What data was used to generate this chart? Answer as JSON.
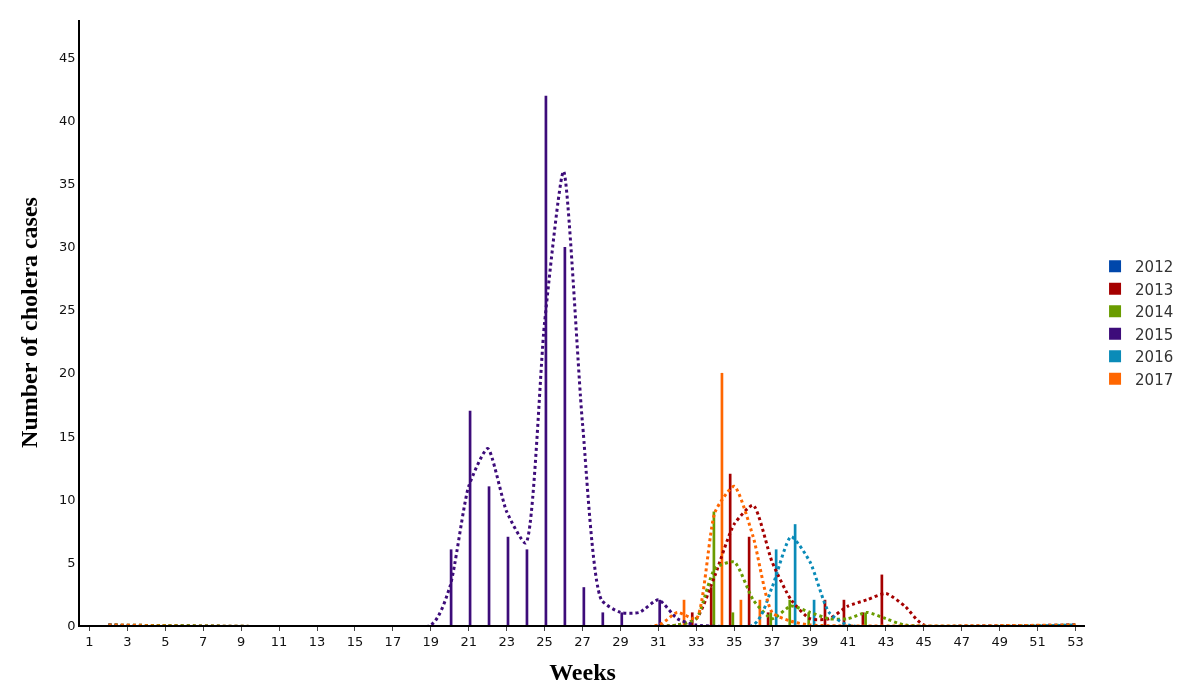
{
  "chart_data": {
    "type": "bar",
    "xlabel": "Weeks",
    "ylabel": "Number of cholera cases",
    "x": [
      1,
      2,
      3,
      4,
      5,
      6,
      7,
      8,
      9,
      10,
      11,
      12,
      13,
      14,
      15,
      16,
      17,
      18,
      19,
      20,
      21,
      22,
      23,
      24,
      25,
      26,
      27,
      28,
      29,
      30,
      31,
      32,
      33,
      34,
      35,
      36,
      37,
      38,
      39,
      40,
      41,
      42,
      43,
      44,
      45,
      46,
      47,
      48,
      49,
      50,
      51,
      52,
      53
    ],
    "xlim": [
      0.5,
      53.5
    ],
    "xticks": [
      1,
      3,
      5,
      7,
      9,
      11,
      13,
      15,
      17,
      19,
      21,
      23,
      25,
      27,
      29,
      31,
      33,
      35,
      37,
      39,
      41,
      43,
      45,
      47,
      49,
      51,
      53
    ],
    "ylim": [
      0,
      48
    ],
    "yticks": [
      0,
      5,
      10,
      15,
      20,
      25,
      30,
      35,
      40,
      45
    ],
    "legend": "right",
    "series": [
      {
        "name": "2012",
        "color": "#0047ab",
        "values": [
          0,
          0,
          0,
          0,
          0,
          0,
          0,
          0,
          0,
          0,
          0,
          0,
          0,
          0,
          0,
          0,
          0,
          0,
          0,
          0,
          0,
          0,
          0,
          0,
          0,
          0,
          0,
          0,
          0,
          0,
          0,
          0,
          0,
          0,
          0,
          0,
          0,
          0,
          0,
          0,
          0,
          0,
          0,
          0,
          0,
          0,
          0,
          0,
          0,
          0,
          0,
          0,
          0
        ]
      },
      {
        "name": "2013",
        "color": "#a50000",
        "values": [
          0,
          0,
          0,
          0,
          0,
          0,
          0,
          0,
          0,
          0,
          0,
          0,
          0,
          0,
          0,
          0,
          0,
          0,
          0,
          0,
          0,
          0,
          0,
          0,
          0,
          0,
          0,
          0,
          0,
          0,
          0,
          0,
          1,
          3,
          12,
          7,
          1,
          0,
          0,
          2,
          2,
          1,
          4,
          0,
          0,
          0,
          0,
          0,
          0,
          0,
          0,
          0,
          0
        ]
      },
      {
        "name": "2014",
        "color": "#6a9c00",
        "values": [
          0,
          0,
          0,
          0,
          0,
          0,
          0,
          0,
          0,
          0,
          0,
          0,
          0,
          0,
          0,
          0,
          0,
          0,
          0,
          0,
          0,
          0,
          0,
          0,
          0,
          0,
          0,
          0,
          0,
          0,
          0,
          0,
          0,
          9,
          1,
          0,
          1,
          2,
          1,
          0,
          0,
          1,
          0,
          0,
          0,
          0,
          0,
          0,
          0,
          0,
          0,
          0,
          0
        ]
      },
      {
        "name": "2015",
        "color": "#3d0c7a",
        "values": [
          0,
          0,
          0,
          0,
          0,
          0,
          0,
          0,
          0,
          0,
          0,
          0,
          0,
          0,
          0,
          0,
          0,
          0,
          0,
          6,
          17,
          11,
          7,
          6,
          42,
          30,
          3,
          1,
          1,
          0,
          2,
          0,
          0,
          0,
          0,
          0,
          0,
          0,
          0,
          0,
          0,
          0,
          0,
          0,
          0,
          0,
          0,
          0,
          0,
          0,
          0,
          0,
          0
        ]
      },
      {
        "name": "2016",
        "color": "#0a8bb8",
        "values": [
          0,
          0,
          0,
          0,
          0,
          0,
          0,
          0,
          0,
          0,
          0,
          0,
          0,
          0,
          0,
          0,
          0,
          0,
          0,
          0,
          0,
          0,
          0,
          0,
          0,
          0,
          0,
          0,
          0,
          0,
          0,
          0,
          0,
          0,
          0,
          0,
          6,
          8,
          2,
          0,
          0,
          0,
          0,
          0,
          0,
          0,
          0,
          0,
          0,
          0,
          0,
          0,
          0
        ]
      },
      {
        "name": "2017",
        "color": "#ff6600",
        "values": [
          0,
          0,
          0,
          0,
          0,
          0,
          0,
          0,
          0,
          0,
          0,
          0,
          0,
          0,
          0,
          0,
          0,
          0,
          0,
          0,
          0,
          0,
          0,
          0,
          0,
          0,
          0,
          0,
          0,
          0,
          0,
          2,
          0,
          20,
          2,
          2,
          0,
          0,
          0,
          0,
          0,
          0,
          0,
          0,
          0,
          0,
          0,
          0,
          0,
          0,
          0,
          0,
          0
        ]
      },
      {
        "type": "line",
        "line_style": "dotted",
        "color": "#a50000",
        "x": [
          2,
          32,
          33,
          34,
          35,
          36,
          37,
          38,
          39,
          40,
          41,
          42,
          43,
          44,
          45,
          53
        ],
        "values": [
          0,
          0,
          0.5,
          4,
          8,
          9.5,
          5,
          2,
          0.5,
          0.5,
          1.5,
          2,
          2.5,
          1.5,
          0,
          0
        ]
      },
      {
        "type": "line",
        "line_style": "dotted",
        "color": "#6a9c00",
        "x": [
          2,
          32,
          33,
          34,
          35,
          36,
          37,
          38,
          39,
          40,
          41,
          42,
          43,
          44,
          53
        ],
        "values": [
          0,
          0,
          0.5,
          4.5,
          5,
          2,
          0.5,
          1.5,
          1,
          0.5,
          0.5,
          1,
          0.5,
          0,
          0
        ]
      },
      {
        "type": "line",
        "line_style": "dotted",
        "color": "#3d0c7a",
        "x": [
          2,
          19,
          20,
          21,
          22,
          23,
          24,
          25,
          26,
          27,
          28,
          29,
          30,
          31,
          32,
          33,
          53
        ],
        "values": [
          0,
          0,
          3,
          11,
          14,
          9,
          6.5,
          24,
          36,
          16,
          2,
          1,
          1,
          2,
          0.5,
          0,
          0
        ]
      },
      {
        "type": "line",
        "line_style": "dotted",
        "color": "#0a8bb8",
        "x": [
          2,
          36,
          37,
          38,
          39,
          40,
          41,
          53
        ],
        "values": [
          0,
          0,
          3,
          7,
          5,
          1,
          0,
          0
        ]
      },
      {
        "type": "line",
        "line_style": "dotted",
        "color": "#ff6600",
        "x": [
          2,
          31,
          32,
          33,
          34,
          35,
          36,
          37,
          38,
          39,
          53
        ],
        "values": [
          0,
          0,
          1,
          0.5,
          9,
          11,
          7,
          1,
          0.3,
          0,
          0
        ]
      }
    ]
  }
}
